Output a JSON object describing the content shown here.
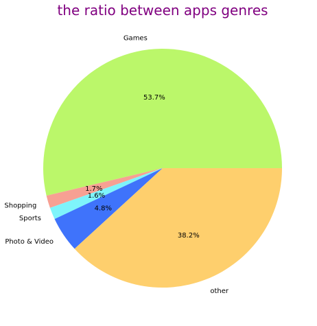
{
  "chart_data": {
    "type": "pie",
    "title": "the ratio between apps genres",
    "title_color": "#800080",
    "start_angle_deg": 0,
    "direction": "counterclockwise",
    "slices": [
      {
        "label": "Games",
        "value": 53.7,
        "pct_label": "53.7%",
        "color": "#bbf76a"
      },
      {
        "label": "Shopping",
        "value": 1.7,
        "pct_label": "1.7%",
        "color": "#f7a093"
      },
      {
        "label": "Sports",
        "value": 1.6,
        "pct_label": "1.6%",
        "color": "#7ef4fb"
      },
      {
        "label": "Photo & Video",
        "value": 4.8,
        "pct_label": "4.8%",
        "color": "#3f73fb"
      },
      {
        "label": "other",
        "value": 38.2,
        "pct_label": "38.2%",
        "color": "#fecf6d"
      }
    ]
  }
}
